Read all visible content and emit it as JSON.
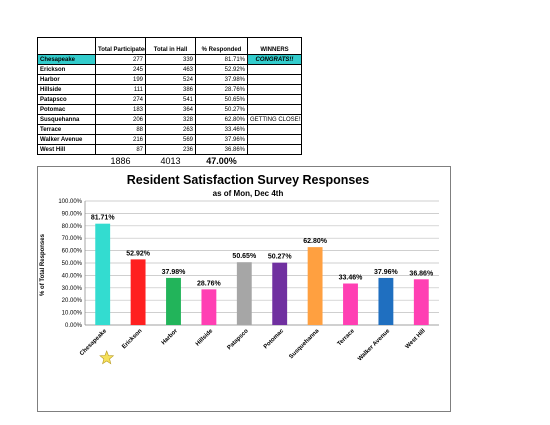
{
  "table": {
    "headers": [
      "",
      "Total Participated",
      "Total in Hall",
      "% Responded",
      "WINNERS"
    ],
    "rows": [
      {
        "hall": "Chesapeake",
        "participated": "277",
        "total": "339",
        "pct": "81.71%",
        "winner": "CONGRATS!!"
      },
      {
        "hall": "Erickson",
        "participated": "245",
        "total": "463",
        "pct": "52.92%",
        "winner": ""
      },
      {
        "hall": "Harbor",
        "participated": "199",
        "total": "524",
        "pct": "37.98%",
        "winner": ""
      },
      {
        "hall": "Hillside",
        "participated": "111",
        "total": "386",
        "pct": "28.76%",
        "winner": ""
      },
      {
        "hall": "Patapsco",
        "participated": "274",
        "total": "541",
        "pct": "50.65%",
        "winner": ""
      },
      {
        "hall": "Potomac",
        "participated": "183",
        "total": "364",
        "pct": "50.27%",
        "winner": ""
      },
      {
        "hall": "Susquehanna",
        "participated": "206",
        "total": "328",
        "pct": "62.80%",
        "winner": "GETTING CLOSE!!"
      },
      {
        "hall": "Terrace",
        "participated": "88",
        "total": "263",
        "pct": "33.46%",
        "winner": ""
      },
      {
        "hall": "Walker Avenue",
        "participated": "216",
        "total": "569",
        "pct": "37.96%",
        "winner": ""
      },
      {
        "hall": "West Hill",
        "participated": "87",
        "total": "236",
        "pct": "36.86%",
        "winner": ""
      }
    ],
    "totals": {
      "participated": "1886",
      "total": "4013",
      "pct": "47.00%"
    }
  },
  "chart_data": {
    "type": "bar",
    "title": "Resident Satisfaction Survey Responses",
    "subtitle": "as of Mon, Dec 4th",
    "ylabel": "% of Total Responses",
    "xlabel": "",
    "ylim": [
      0,
      100
    ],
    "yticks": [
      "0.00%",
      "10.00%",
      "20.00%",
      "30.00%",
      "40.00%",
      "50.00%",
      "60.00%",
      "70.00%",
      "80.00%",
      "90.00%",
      "100.00%"
    ],
    "categories": [
      "Chesapeake",
      "Erickson",
      "Harbor",
      "Hillside",
      "Patapsco",
      "Potomac",
      "Susquehanna",
      "Terrace",
      "Walker Avenue",
      "West Hill"
    ],
    "values": [
      81.71,
      52.92,
      37.98,
      28.76,
      50.65,
      50.27,
      62.8,
      33.46,
      37.96,
      36.86
    ],
    "data_labels": [
      "81.71%",
      "52.92%",
      "37.98%",
      "28.76%",
      "50.65%",
      "50.27%",
      "62.80%",
      "33.46%",
      "37.96%",
      "36.86%"
    ],
    "colors": [
      "#33dcd0",
      "#ff2020",
      "#22b45a",
      "#ff3fb3",
      "#a6a6a6",
      "#7030a0",
      "#ffa040",
      "#ff3fb3",
      "#1f6fc0",
      "#ff3fb3"
    ],
    "grid": true,
    "legend": "none",
    "winner_marker": "star-icon"
  }
}
